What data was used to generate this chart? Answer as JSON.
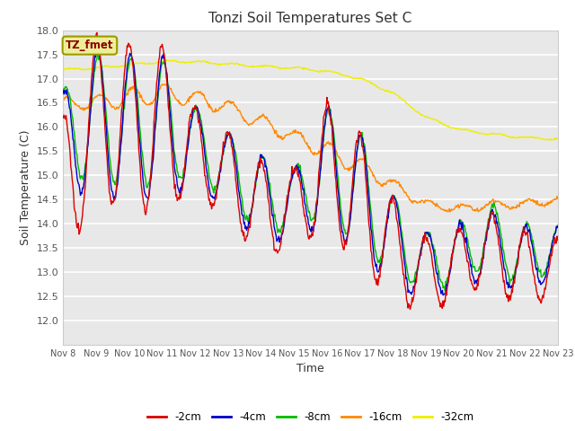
{
  "title": "Tonzi Soil Temperatures Set C",
  "xlabel": "Time",
  "ylabel": "Soil Temperature (C)",
  "ylim": [
    11.5,
    18.0
  ],
  "yticks": [
    12.0,
    12.5,
    13.0,
    13.5,
    14.0,
    14.5,
    15.0,
    15.5,
    16.0,
    16.5,
    17.0,
    17.5,
    18.0
  ],
  "xtick_labels": [
    "Nov 8",
    "Nov 9",
    "Nov 10",
    "Nov 11",
    "Nov 12",
    "Nov 13",
    "Nov 14",
    "Nov 15",
    "Nov 16",
    "Nov 17",
    "Nov 18",
    "Nov 19",
    "Nov 20",
    "Nov 21",
    "Nov 22",
    "Nov 23"
  ],
  "colors": {
    "-2cm": "#dd0000",
    "-4cm": "#0000cc",
    "-8cm": "#00bb00",
    "-16cm": "#ff8800",
    "-32cm": "#eeee00"
  },
  "legend_label": "TZ_fmet",
  "legend_box_facecolor": "#eeee99",
  "legend_box_edgecolor": "#999900",
  "fig_facecolor": "#ffffff",
  "plot_facecolor": "#e8e8e8"
}
